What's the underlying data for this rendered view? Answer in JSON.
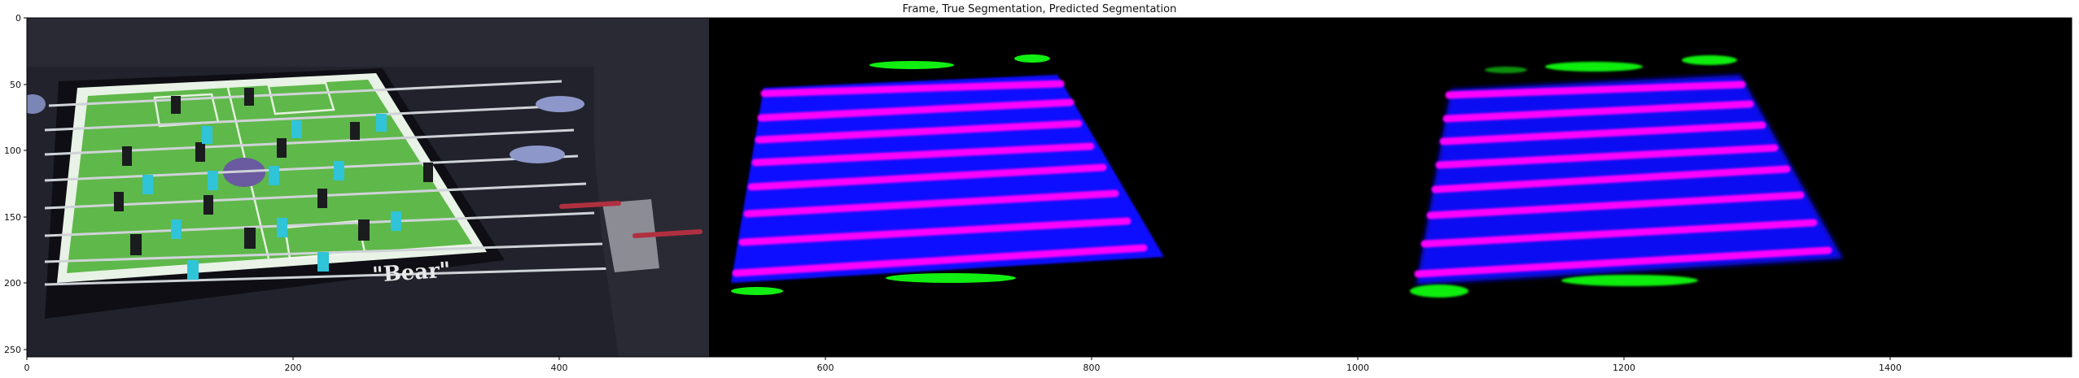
{
  "figure": {
    "title": "Frame, True Segmentation, Predicted Segmentation"
  },
  "axes": {
    "x_ticks": [
      "0",
      "200",
      "400",
      "600",
      "800",
      "1000",
      "1200",
      "1400"
    ],
    "y_ticks": [
      "0",
      "50",
      "100",
      "150",
      "200",
      "250"
    ],
    "x_range": [
      0,
      1536
    ],
    "y_range": [
      0,
      256
    ]
  },
  "panels": {
    "frame": {
      "lettering": "\"Bear\""
    }
  },
  "colors": {
    "background_black": "#000000",
    "field_blue": "#0a0aff",
    "rod_magenta": "#ff00ff",
    "goal_green": "#11ee11",
    "table_green": "#5fb84a",
    "player_cyan": "#2fc4d8"
  }
}
